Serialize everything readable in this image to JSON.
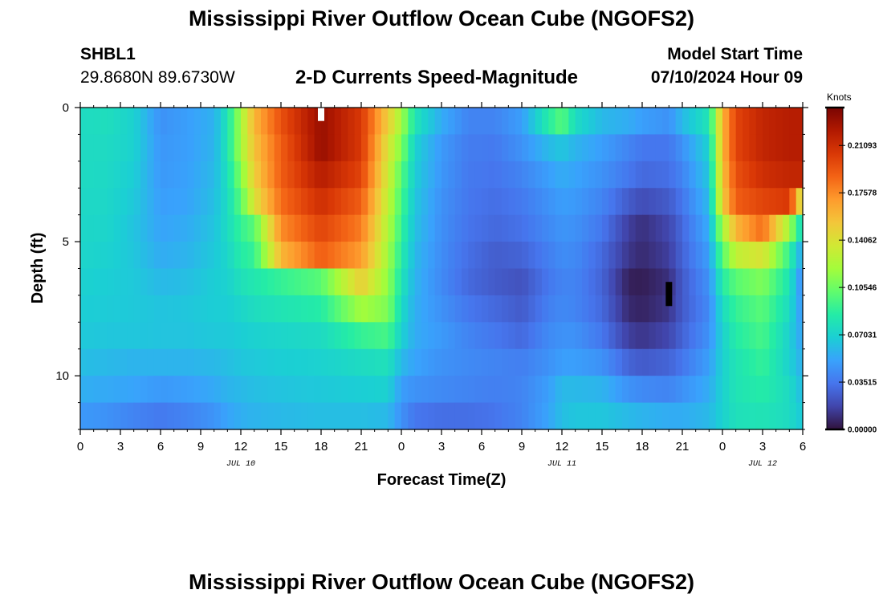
{
  "header": {
    "title": "Mississippi River Outflow Ocean Cube (NGOFS2)",
    "station_id": "SHBL1",
    "coordinates": "29.8680N  89.6730W",
    "subtitle": "2-D Currents Speed-Magnitude",
    "model_start_label": "Model Start Time",
    "model_start_value": "07/10/2024 Hour 09"
  },
  "footer": {
    "repeated_title": "Mississippi River Outflow Ocean Cube (NGOFS2)"
  },
  "colors": {
    "scale": [
      "#30123b",
      "#4145ab",
      "#4675ed",
      "#39a2fc",
      "#1bcfd4",
      "#24eca6",
      "#61fc6c",
      "#a4fc3b",
      "#d1e834",
      "#f3c63a",
      "#fe9b2d",
      "#f36315",
      "#d93806",
      "#b11901",
      "#7a0402"
    ],
    "marker_white": "#ffffff",
    "marker_black": "#000000"
  },
  "chart_data": {
    "type": "heatmap",
    "title": "2-D Currents Speed-Magnitude",
    "xlabel": "Forecast Time(Z)",
    "ylabel": "Depth (ft)",
    "x_range_hours": [
      0,
      54
    ],
    "y_range_ft": [
      0,
      12
    ],
    "x_ticks": [
      {
        "hour": 0,
        "label": "0"
      },
      {
        "hour": 3,
        "label": "3"
      },
      {
        "hour": 6,
        "label": "6"
      },
      {
        "hour": 9,
        "label": "9"
      },
      {
        "hour": 12,
        "label": "12"
      },
      {
        "hour": 15,
        "label": "15"
      },
      {
        "hour": 18,
        "label": "18"
      },
      {
        "hour": 21,
        "label": "21"
      },
      {
        "hour": 24,
        "label": "0"
      },
      {
        "hour": 27,
        "label": "3"
      },
      {
        "hour": 30,
        "label": "6"
      },
      {
        "hour": 33,
        "label": "9"
      },
      {
        "hour": 36,
        "label": "12"
      },
      {
        "hour": 39,
        "label": "15"
      },
      {
        "hour": 42,
        "label": "18"
      },
      {
        "hour": 45,
        "label": "21"
      },
      {
        "hour": 48,
        "label": "0"
      },
      {
        "hour": 51,
        "label": "3"
      },
      {
        "hour": 54,
        "label": "6"
      }
    ],
    "date_labels": [
      {
        "hour": 12,
        "label": "JUL 10"
      },
      {
        "hour": 36,
        "label": "JUL 11"
      },
      {
        "hour": 51,
        "label": "JUL 12"
      }
    ],
    "y_ticks": [
      {
        "depth": 0,
        "label": "0"
      },
      {
        "depth": 5,
        "label": "5"
      },
      {
        "depth": 10,
        "label": "10"
      }
    ],
    "colorbar": {
      "units": "Knots",
      "min": 0.0,
      "max": 0.2391,
      "tick_values": [
        0.0,
        0.03515,
        0.0703,
        0.10546,
        0.14062,
        0.17578,
        0.21093
      ],
      "tick_labels": [
        "0.00000",
        "0.03515",
        "0.07031",
        "0.10546",
        "0.14062",
        "0.17578",
        "0.21093"
      ]
    },
    "depth_levels_ft": [
      0.5,
      1.5,
      2.5,
      3.5,
      4.5,
      5.5,
      6.5,
      7.5,
      8.5,
      9.5,
      10.5,
      11.5
    ],
    "key_hours": [
      0,
      2,
      4,
      6,
      8,
      10,
      11,
      12,
      13,
      15,
      18,
      21,
      23,
      24,
      25,
      27,
      29,
      31,
      33,
      35,
      36,
      37,
      39,
      41,
      42,
      44,
      45,
      47,
      48,
      49,
      51,
      53,
      54
    ],
    "speed_knots": [
      [
        0.075,
        0.077,
        0.07,
        0.045,
        0.05,
        0.057,
        0.08,
        0.12,
        0.16,
        0.195,
        0.23,
        0.205,
        0.15,
        0.12,
        0.08,
        0.055,
        0.04,
        0.04,
        0.05,
        0.085,
        0.1,
        0.075,
        0.06,
        0.055,
        0.05,
        0.045,
        0.06,
        0.08,
        0.16,
        0.2,
        0.215,
        0.22,
        0.22
      ],
      [
        0.075,
        0.075,
        0.07,
        0.047,
        0.05,
        0.058,
        0.08,
        0.12,
        0.155,
        0.19,
        0.23,
        0.205,
        0.14,
        0.11,
        0.07,
        0.048,
        0.037,
        0.036,
        0.045,
        0.06,
        0.065,
        0.058,
        0.05,
        0.04,
        0.035,
        0.035,
        0.045,
        0.07,
        0.16,
        0.2,
        0.215,
        0.22,
        0.22
      ],
      [
        0.075,
        0.074,
        0.068,
        0.048,
        0.051,
        0.06,
        0.077,
        0.11,
        0.15,
        0.19,
        0.22,
        0.2,
        0.135,
        0.1,
        0.068,
        0.047,
        0.036,
        0.034,
        0.04,
        0.05,
        0.055,
        0.052,
        0.045,
        0.035,
        0.03,
        0.032,
        0.04,
        0.065,
        0.155,
        0.195,
        0.21,
        0.215,
        0.215
      ],
      [
        0.074,
        0.073,
        0.066,
        0.05,
        0.052,
        0.062,
        0.075,
        0.1,
        0.14,
        0.185,
        0.21,
        0.19,
        0.13,
        0.095,
        0.065,
        0.045,
        0.035,
        0.032,
        0.036,
        0.045,
        0.05,
        0.048,
        0.04,
        0.025,
        0.02,
        0.025,
        0.035,
        0.06,
        0.15,
        0.19,
        0.2,
        0.205,
        0.13
      ],
      [
        0.073,
        0.072,
        0.064,
        0.052,
        0.055,
        0.064,
        0.075,
        0.09,
        0.1,
        0.175,
        0.2,
        0.18,
        0.125,
        0.09,
        0.063,
        0.044,
        0.034,
        0.03,
        0.033,
        0.042,
        0.046,
        0.045,
        0.035,
        0.015,
        0.01,
        0.018,
        0.03,
        0.055,
        0.12,
        0.16,
        0.185,
        0.12,
        0.07
      ],
      [
        0.072,
        0.07,
        0.065,
        0.055,
        0.058,
        0.066,
        0.072,
        0.085,
        0.09,
        0.16,
        0.19,
        0.17,
        0.12,
        0.085,
        0.06,
        0.043,
        0.032,
        0.026,
        0.028,
        0.038,
        0.043,
        0.042,
        0.03,
        0.012,
        0.008,
        0.015,
        0.028,
        0.05,
        0.1,
        0.13,
        0.14,
        0.09,
        0.05
      ],
      [
        0.07,
        0.068,
        0.066,
        0.06,
        0.062,
        0.068,
        0.07,
        0.078,
        0.082,
        0.09,
        0.1,
        0.15,
        0.115,
        0.08,
        0.058,
        0.042,
        0.03,
        0.025,
        0.022,
        0.035,
        0.04,
        0.04,
        0.028,
        0.005,
        0.004,
        0.01,
        0.025,
        0.045,
        0.085,
        0.1,
        0.11,
        0.08,
        0.04
      ],
      [
        0.068,
        0.067,
        0.066,
        0.064,
        0.065,
        0.068,
        0.068,
        0.072,
        0.076,
        0.08,
        0.085,
        0.12,
        0.11,
        0.075,
        0.056,
        0.045,
        0.035,
        0.03,
        0.025,
        0.038,
        0.042,
        0.04,
        0.03,
        0.008,
        0.006,
        0.012,
        0.025,
        0.042,
        0.075,
        0.09,
        0.1,
        0.075,
        0.045
      ],
      [
        0.066,
        0.065,
        0.065,
        0.064,
        0.064,
        0.066,
        0.066,
        0.068,
        0.07,
        0.072,
        0.075,
        0.09,
        0.095,
        0.07,
        0.055,
        0.048,
        0.04,
        0.035,
        0.03,
        0.042,
        0.045,
        0.045,
        0.035,
        0.015,
        0.012,
        0.018,
        0.028,
        0.045,
        0.07,
        0.085,
        0.095,
        0.07,
        0.05
      ],
      [
        0.062,
        0.06,
        0.058,
        0.058,
        0.058,
        0.06,
        0.062,
        0.065,
        0.066,
        0.068,
        0.07,
        0.075,
        0.078,
        0.06,
        0.052,
        0.045,
        0.042,
        0.04,
        0.038,
        0.045,
        0.05,
        0.05,
        0.045,
        0.028,
        0.025,
        0.028,
        0.035,
        0.05,
        0.07,
        0.08,
        0.09,
        0.07,
        0.055
      ],
      [
        0.056,
        0.054,
        0.052,
        0.048,
        0.05,
        0.054,
        0.058,
        0.06,
        0.062,
        0.064,
        0.066,
        0.068,
        0.07,
        0.05,
        0.045,
        0.042,
        0.04,
        0.038,
        0.04,
        0.05,
        0.06,
        0.06,
        0.058,
        0.045,
        0.042,
        0.04,
        0.045,
        0.055,
        0.07,
        0.08,
        0.085,
        0.075,
        0.06
      ],
      [
        0.048,
        0.045,
        0.04,
        0.036,
        0.04,
        0.046,
        0.052,
        0.056,
        0.058,
        0.06,
        0.062,
        0.062,
        0.06,
        0.045,
        0.035,
        0.032,
        0.032,
        0.034,
        0.04,
        0.052,
        0.062,
        0.065,
        0.065,
        0.06,
        0.058,
        0.055,
        0.055,
        0.06,
        0.07,
        0.078,
        0.08,
        0.075,
        0.065
      ]
    ],
    "markers": [
      {
        "hour": 18,
        "depth_from": 0.0,
        "depth_to": 0.5,
        "color": "white"
      },
      {
        "hour": 44,
        "depth_from": 6.5,
        "depth_to": 7.4,
        "color": "black"
      }
    ]
  }
}
